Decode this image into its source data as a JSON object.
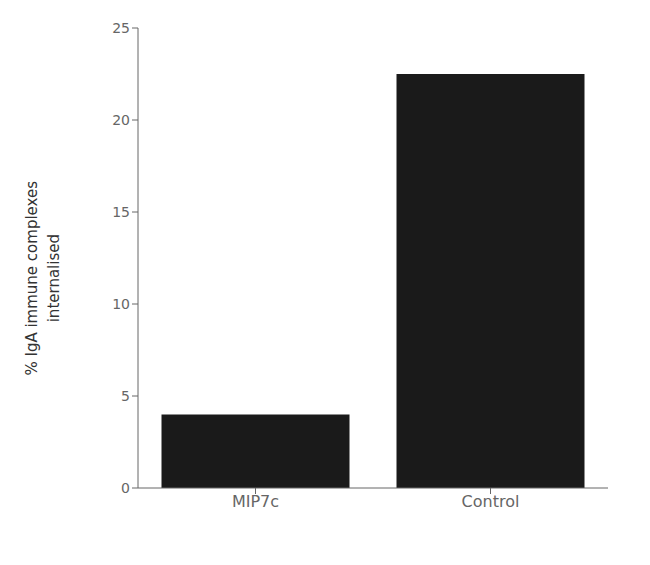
{
  "chart_data": {
    "type": "bar",
    "categories": [
      "MIP7c",
      "Control"
    ],
    "values": [
      4.0,
      22.5
    ],
    "color": "#1a1a1a",
    "ylabel": "% IgA immune complexes\ninternalised",
    "ylim": [
      0,
      25
    ],
    "yticks": [
      0,
      5,
      10,
      15,
      20,
      25
    ],
    "grid": false
  }
}
